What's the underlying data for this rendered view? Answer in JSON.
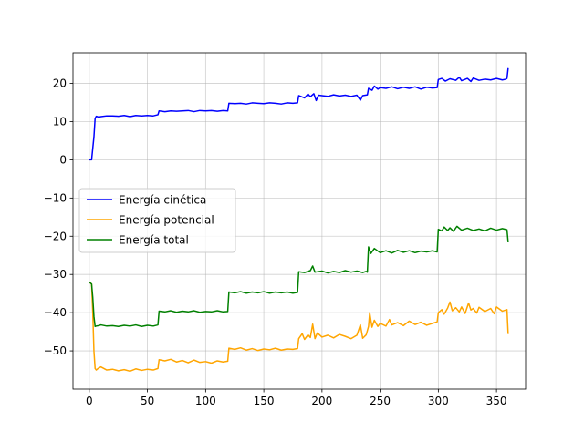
{
  "chart_data": {
    "type": "line",
    "title": "",
    "xlabel": "",
    "ylabel": "",
    "xlim": [
      -14,
      375
    ],
    "ylim": [
      -60,
      28
    ],
    "x_ticks": [
      0,
      50,
      100,
      150,
      200,
      250,
      300,
      350
    ],
    "y_ticks": [
      -50,
      -40,
      -30,
      -20,
      -10,
      0,
      10,
      20
    ],
    "x_tick_labels": [
      "0",
      "50",
      "100",
      "150",
      "200",
      "250",
      "300",
      "350"
    ],
    "y_tick_labels": [
      "−50",
      "−40",
      "−30",
      "−20",
      "−10",
      "0",
      "10",
      "20"
    ],
    "grid": true,
    "legend_position": "center-left",
    "series": [
      {
        "name": "Energía cinética",
        "color": "#0000ff",
        "points": [
          [
            0,
            0
          ],
          [
            2,
            0
          ],
          [
            4,
            6
          ],
          [
            5,
            10.8
          ],
          [
            6,
            11.4
          ],
          [
            8,
            11.2
          ],
          [
            10,
            11.3
          ],
          [
            15,
            11.5
          ],
          [
            20,
            11.5
          ],
          [
            25,
            11.4
          ],
          [
            30,
            11.6
          ],
          [
            35,
            11.3
          ],
          [
            40,
            11.6
          ],
          [
            45,
            11.5
          ],
          [
            50,
            11.6
          ],
          [
            55,
            11.5
          ],
          [
            59,
            11.8
          ],
          [
            60,
            12.8
          ],
          [
            65,
            12.6
          ],
          [
            70,
            12.8
          ],
          [
            75,
            12.7
          ],
          [
            80,
            12.8
          ],
          [
            85,
            12.9
          ],
          [
            90,
            12.6
          ],
          [
            95,
            12.9
          ],
          [
            100,
            12.8
          ],
          [
            105,
            12.9
          ],
          [
            110,
            12.7
          ],
          [
            115,
            12.9
          ],
          [
            119,
            12.8
          ],
          [
            120,
            14.8
          ],
          [
            125,
            14.7
          ],
          [
            130,
            14.8
          ],
          [
            135,
            14.6
          ],
          [
            140,
            14.9
          ],
          [
            145,
            14.8
          ],
          [
            150,
            14.7
          ],
          [
            155,
            14.9
          ],
          [
            160,
            14.8
          ],
          [
            165,
            14.6
          ],
          [
            170,
            14.9
          ],
          [
            175,
            14.8
          ],
          [
            179,
            14.9
          ],
          [
            180,
            16.8
          ],
          [
            185,
            16.2
          ],
          [
            188,
            17.2
          ],
          [
            190,
            16.5
          ],
          [
            193,
            17.3
          ],
          [
            195,
            15.5
          ],
          [
            197,
            16.9
          ],
          [
            200,
            16.8
          ],
          [
            205,
            16.6
          ],
          [
            210,
            17.0
          ],
          [
            215,
            16.7
          ],
          [
            220,
            16.9
          ],
          [
            225,
            16.6
          ],
          [
            230,
            16.9
          ],
          [
            233,
            15.6
          ],
          [
            235,
            16.8
          ],
          [
            239,
            17.0
          ],
          [
            240,
            18.7
          ],
          [
            243,
            18.2
          ],
          [
            245,
            19.3
          ],
          [
            248,
            18.5
          ],
          [
            250,
            18.9
          ],
          [
            255,
            18.7
          ],
          [
            260,
            19.1
          ],
          [
            265,
            18.6
          ],
          [
            270,
            19.0
          ],
          [
            275,
            18.7
          ],
          [
            280,
            19.1
          ],
          [
            285,
            18.5
          ],
          [
            290,
            19.0
          ],
          [
            295,
            18.8
          ],
          [
            299,
            18.9
          ],
          [
            300,
            21.0
          ],
          [
            303,
            21.3
          ],
          [
            306,
            20.6
          ],
          [
            310,
            21.2
          ],
          [
            315,
            20.8
          ],
          [
            318,
            21.6
          ],
          [
            320,
            20.7
          ],
          [
            325,
            21.3
          ],
          [
            328,
            20.5
          ],
          [
            330,
            21.4
          ],
          [
            335,
            20.8
          ],
          [
            340,
            21.1
          ],
          [
            345,
            20.9
          ],
          [
            350,
            21.3
          ],
          [
            355,
            20.9
          ],
          [
            358,
            21.1
          ],
          [
            359,
            21.3
          ],
          [
            360,
            24
          ]
        ]
      },
      {
        "name": "Energía potencial",
        "color": "#ffa500",
        "points": [
          [
            0,
            -32
          ],
          [
            2,
            -32.5
          ],
          [
            3,
            -40
          ],
          [
            4,
            -50
          ],
          [
            5,
            -54.6
          ],
          [
            6,
            -55
          ],
          [
            8,
            -54.5
          ],
          [
            10,
            -54.2
          ],
          [
            15,
            -55
          ],
          [
            20,
            -54.8
          ],
          [
            25,
            -55.2
          ],
          [
            30,
            -54.9
          ],
          [
            35,
            -55.3
          ],
          [
            40,
            -54.7
          ],
          [
            45,
            -55.1
          ],
          [
            50,
            -54.8
          ],
          [
            55,
            -55
          ],
          [
            59,
            -54.6
          ],
          [
            60,
            -52.3
          ],
          [
            65,
            -52.6
          ],
          [
            70,
            -52.2
          ],
          [
            75,
            -52.9
          ],
          [
            80,
            -52.5
          ],
          [
            85,
            -53.1
          ],
          [
            90,
            -52.4
          ],
          [
            95,
            -53
          ],
          [
            100,
            -52.8
          ],
          [
            105,
            -53.2
          ],
          [
            110,
            -52.6
          ],
          [
            115,
            -52.9
          ],
          [
            119,
            -52.7
          ],
          [
            120,
            -49.3
          ],
          [
            125,
            -49.6
          ],
          [
            130,
            -49.2
          ],
          [
            135,
            -49.8
          ],
          [
            140,
            -49.4
          ],
          [
            145,
            -49.9
          ],
          [
            150,
            -49.5
          ],
          [
            155,
            -49.7
          ],
          [
            160,
            -49.3
          ],
          [
            165,
            -49.8
          ],
          [
            170,
            -49.5
          ],
          [
            175,
            -49.6
          ],
          [
            179,
            -49.4
          ],
          [
            180,
            -46.8
          ],
          [
            183,
            -45.5
          ],
          [
            185,
            -47
          ],
          [
            188,
            -45.8
          ],
          [
            190,
            -46.5
          ],
          [
            192,
            -43
          ],
          [
            194,
            -46.8
          ],
          [
            196,
            -45.3
          ],
          [
            200,
            -46.4
          ],
          [
            205,
            -45.9
          ],
          [
            210,
            -46.6
          ],
          [
            215,
            -45.7
          ],
          [
            220,
            -46.2
          ],
          [
            225,
            -46.8
          ],
          [
            230,
            -45.9
          ],
          [
            233,
            -43.2
          ],
          [
            235,
            -46.7
          ],
          [
            238,
            -45.8
          ],
          [
            240,
            -43.6
          ],
          [
            241,
            -40
          ],
          [
            243,
            -43.8
          ],
          [
            245,
            -42
          ],
          [
            248,
            -43.6
          ],
          [
            250,
            -42.8
          ],
          [
            255,
            -43.5
          ],
          [
            258,
            -41.8
          ],
          [
            260,
            -43.2
          ],
          [
            265,
            -42.6
          ],
          [
            270,
            -43.4
          ],
          [
            275,
            -42.2
          ],
          [
            280,
            -43.1
          ],
          [
            285,
            -42.5
          ],
          [
            290,
            -43.3
          ],
          [
            295,
            -42.8
          ],
          [
            299,
            -42.4
          ],
          [
            300,
            -40
          ],
          [
            303,
            -39.2
          ],
          [
            305,
            -40.4
          ],
          [
            308,
            -38.8
          ],
          [
            310,
            -37.2
          ],
          [
            312,
            -39.5
          ],
          [
            315,
            -38.7
          ],
          [
            318,
            -39.8
          ],
          [
            320,
            -38.5
          ],
          [
            323,
            -40.2
          ],
          [
            326,
            -37.5
          ],
          [
            328,
            -39.3
          ],
          [
            330,
            -38.9
          ],
          [
            333,
            -40.1
          ],
          [
            335,
            -38.6
          ],
          [
            340,
            -39.7
          ],
          [
            345,
            -38.9
          ],
          [
            348,
            -40.3
          ],
          [
            350,
            -38.5
          ],
          [
            355,
            -39.6
          ],
          [
            359,
            -39.2
          ],
          [
            360,
            -45.6
          ]
        ]
      },
      {
        "name": "Energía total",
        "color": "#008000",
        "points": [
          [
            0,
            -32
          ],
          [
            2,
            -32.5
          ],
          [
            3,
            -36
          ],
          [
            4,
            -41
          ],
          [
            5,
            -43.6
          ],
          [
            6,
            -43.5
          ],
          [
            8,
            -43.4
          ],
          [
            10,
            -43.2
          ],
          [
            15,
            -43.5
          ],
          [
            20,
            -43.4
          ],
          [
            25,
            -43.6
          ],
          [
            30,
            -43.3
          ],
          [
            35,
            -43.5
          ],
          [
            40,
            -43.2
          ],
          [
            45,
            -43.6
          ],
          [
            50,
            -43.3
          ],
          [
            55,
            -43.5
          ],
          [
            59,
            -43.2
          ],
          [
            60,
            -39.6
          ],
          [
            65,
            -39.8
          ],
          [
            70,
            -39.5
          ],
          [
            75,
            -39.9
          ],
          [
            80,
            -39.6
          ],
          [
            85,
            -39.8
          ],
          [
            90,
            -39.5
          ],
          [
            95,
            -39.9
          ],
          [
            100,
            -39.7
          ],
          [
            105,
            -39.8
          ],
          [
            110,
            -39.5
          ],
          [
            115,
            -39.8
          ],
          [
            119,
            -39.7
          ],
          [
            120,
            -34.6
          ],
          [
            125,
            -34.8
          ],
          [
            130,
            -34.5
          ],
          [
            135,
            -34.9
          ],
          [
            140,
            -34.6
          ],
          [
            145,
            -34.8
          ],
          [
            150,
            -34.5
          ],
          [
            155,
            -34.9
          ],
          [
            160,
            -34.6
          ],
          [
            165,
            -34.8
          ],
          [
            170,
            -34.6
          ],
          [
            175,
            -34.9
          ],
          [
            179,
            -34.7
          ],
          [
            180,
            -29.3
          ],
          [
            185,
            -29.5
          ],
          [
            190,
            -29.0
          ],
          [
            192,
            -27.8
          ],
          [
            194,
            -29.4
          ],
          [
            200,
            -29.1
          ],
          [
            205,
            -29.6
          ],
          [
            210,
            -29.2
          ],
          [
            215,
            -29.5
          ],
          [
            220,
            -29.0
          ],
          [
            225,
            -29.4
          ],
          [
            230,
            -29.1
          ],
          [
            235,
            -29.5
          ],
          [
            238,
            -29.2
          ],
          [
            239,
            -29.4
          ],
          [
            240,
            -22.8
          ],
          [
            242,
            -24.5
          ],
          [
            245,
            -23.2
          ],
          [
            250,
            -24.3
          ],
          [
            255,
            -23.8
          ],
          [
            260,
            -24.4
          ],
          [
            265,
            -23.7
          ],
          [
            270,
            -24.2
          ],
          [
            275,
            -23.8
          ],
          [
            280,
            -24.3
          ],
          [
            285,
            -23.9
          ],
          [
            290,
            -24.1
          ],
          [
            295,
            -23.8
          ],
          [
            299,
            -24.1
          ],
          [
            300,
            -18.2
          ],
          [
            303,
            -18.6
          ],
          [
            305,
            -17.6
          ],
          [
            308,
            -18.5
          ],
          [
            310,
            -17.8
          ],
          [
            313,
            -18.7
          ],
          [
            316,
            -17.4
          ],
          [
            320,
            -18.4
          ],
          [
            325,
            -17.9
          ],
          [
            330,
            -18.5
          ],
          [
            335,
            -18.1
          ],
          [
            340,
            -18.6
          ],
          [
            345,
            -17.9
          ],
          [
            350,
            -18.4
          ],
          [
            355,
            -18.0
          ],
          [
            359,
            -18.3
          ],
          [
            360,
            -21.6
          ]
        ]
      }
    ]
  }
}
